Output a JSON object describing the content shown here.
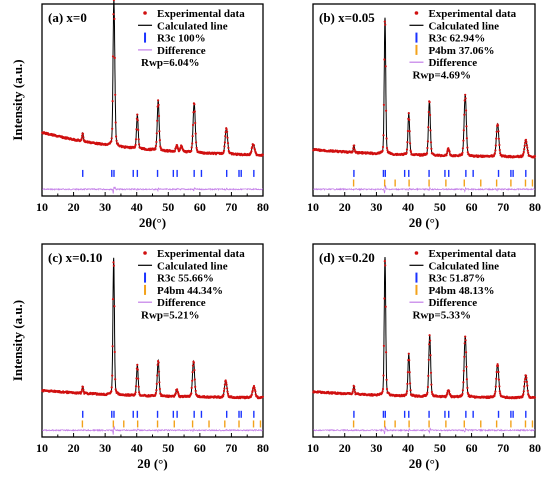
{
  "chart_data": [
    {
      "type": "line",
      "title": "(a) x=0",
      "xlabel": "2θ(°)",
      "ylabel": "Intensity (a.u.)",
      "xlim": [
        10,
        80
      ],
      "x_ticks": [
        "10",
        "20",
        "30",
        "40",
        "50",
        "60",
        "70",
        "80"
      ],
      "legend": [
        "Experimental data",
        "Calculated line",
        "R3c  100%",
        "Difference",
        "Rwp=6.04%"
      ],
      "background": 0.22,
      "peaks": [
        [
          22.9,
          0.07
        ],
        [
          32.7,
          1.0
        ],
        [
          33.0,
          0.45
        ],
        [
          40.2,
          0.28
        ],
        [
          46.8,
          0.42
        ],
        [
          52.7,
          0.05
        ],
        [
          54.2,
          0.05
        ],
        [
          58.2,
          0.42
        ],
        [
          68.4,
          0.22
        ],
        [
          76.9,
          0.09
        ]
      ],
      "series": [
        {
          "name": "R3c",
          "color": "#1a33ff",
          "reflections": [
            22.9,
            32.1,
            32.8,
            38.9,
            40.2,
            46.6,
            51.6,
            52.8,
            58.2,
            60.5,
            68.5,
            72.4,
            73.1,
            77.1
          ]
        }
      ]
    },
    {
      "type": "line",
      "title": "(b) x=0.05",
      "xlabel": "2θ (°)",
      "ylabel": "",
      "xlim": [
        10,
        80
      ],
      "x_ticks": [
        "10",
        "20",
        "30",
        "40",
        "50",
        "60",
        "70",
        "80"
      ],
      "legend": [
        "Experimental data",
        "Calculated line",
        "R3c  62.94%",
        "P4bm 37.06%",
        "Difference",
        "Rwp=4.69%"
      ],
      "background": 0.06,
      "peaks": [
        [
          22.9,
          0.05
        ],
        [
          32.7,
          1.0
        ],
        [
          40.2,
          0.3
        ],
        [
          46.7,
          0.4
        ],
        [
          52.7,
          0.05
        ],
        [
          58.0,
          0.45
        ],
        [
          68.2,
          0.24
        ],
        [
          77.1,
          0.12
        ]
      ],
      "series": [
        {
          "name": "R3c",
          "color": "#1a33ff",
          "reflections": [
            22.9,
            32.2,
            32.8,
            38.9,
            40.2,
            46.6,
            51.6,
            52.8,
            58.2,
            60.5,
            68.5,
            72.4,
            73.1,
            77.1
          ]
        },
        {
          "name": "P4bm",
          "color": "#f2a21a",
          "reflections": [
            22.8,
            32.6,
            35.9,
            40.3,
            46.6,
            51.9,
            57.7,
            62.9,
            67.9,
            72.4,
            77.0,
            79.2
          ]
        }
      ]
    },
    {
      "type": "line",
      "title": "(c) x=0.10",
      "xlabel": "2θ (°)",
      "ylabel": "Intensity (a.u.)",
      "xlim": [
        10,
        80
      ],
      "x_ticks": [
        "10",
        "20",
        "30",
        "40",
        "50",
        "60",
        "70",
        "80"
      ],
      "legend": [
        "Experimental data",
        "Calculated line",
        "R3c  55.66%",
        "P4bm 44.34%",
        "Difference",
        "Rwp=5.21%"
      ],
      "background": 0.06,
      "peaks": [
        [
          22.9,
          0.05
        ],
        [
          32.7,
          1.0
        ],
        [
          40.2,
          0.22
        ],
        [
          46.8,
          0.26
        ],
        [
          52.7,
          0.05
        ],
        [
          58.0,
          0.26
        ],
        [
          68.2,
          0.12
        ],
        [
          77.1,
          0.08
        ]
      ],
      "series": [
        {
          "name": "R3c",
          "color": "#1a33ff",
          "reflections": [
            22.9,
            32.1,
            32.8,
            38.9,
            40.2,
            46.6,
            51.6,
            52.8,
            58.2,
            60.5,
            68.5,
            72.4,
            73.1,
            77.1
          ]
        },
        {
          "name": "P4bm",
          "color": "#f2a21a",
          "reflections": [
            22.8,
            32.6,
            35.9,
            40.3,
            46.6,
            51.9,
            57.7,
            62.9,
            67.9,
            72.4,
            77.0,
            79.2
          ]
        }
      ]
    },
    {
      "type": "line",
      "title": "(d) x=0.20",
      "xlabel": "2θ (°)",
      "ylabel": "",
      "xlim": [
        10,
        80
      ],
      "x_ticks": [
        "10",
        "20",
        "30",
        "40",
        "50",
        "60",
        "70",
        "80"
      ],
      "legend": [
        "Experimental data",
        "Calculated line",
        "R3c  51.87%",
        "P4bm 48.13%",
        "Difference",
        "Rwp=5.33%"
      ],
      "background": 0.05,
      "peaks": [
        [
          22.9,
          0.06
        ],
        [
          32.7,
          1.0
        ],
        [
          40.2,
          0.3
        ],
        [
          46.8,
          0.44
        ],
        [
          52.7,
          0.05
        ],
        [
          58.0,
          0.44
        ],
        [
          68.2,
          0.24
        ],
        [
          77.1,
          0.16
        ]
      ],
      "series": [
        {
          "name": "R3c",
          "color": "#1a33ff",
          "reflections": [
            22.9,
            32.2,
            32.8,
            38.9,
            40.2,
            46.6,
            51.6,
            52.8,
            58.2,
            60.5,
            68.5,
            72.4,
            73.1,
            77.1
          ]
        },
        {
          "name": "P4bm",
          "color": "#f2a21a",
          "reflections": [
            22.8,
            32.6,
            35.9,
            40.3,
            46.6,
            51.9,
            57.7,
            62.9,
            67.9,
            72.4,
            77.0,
            79.2
          ]
        }
      ]
    }
  ]
}
